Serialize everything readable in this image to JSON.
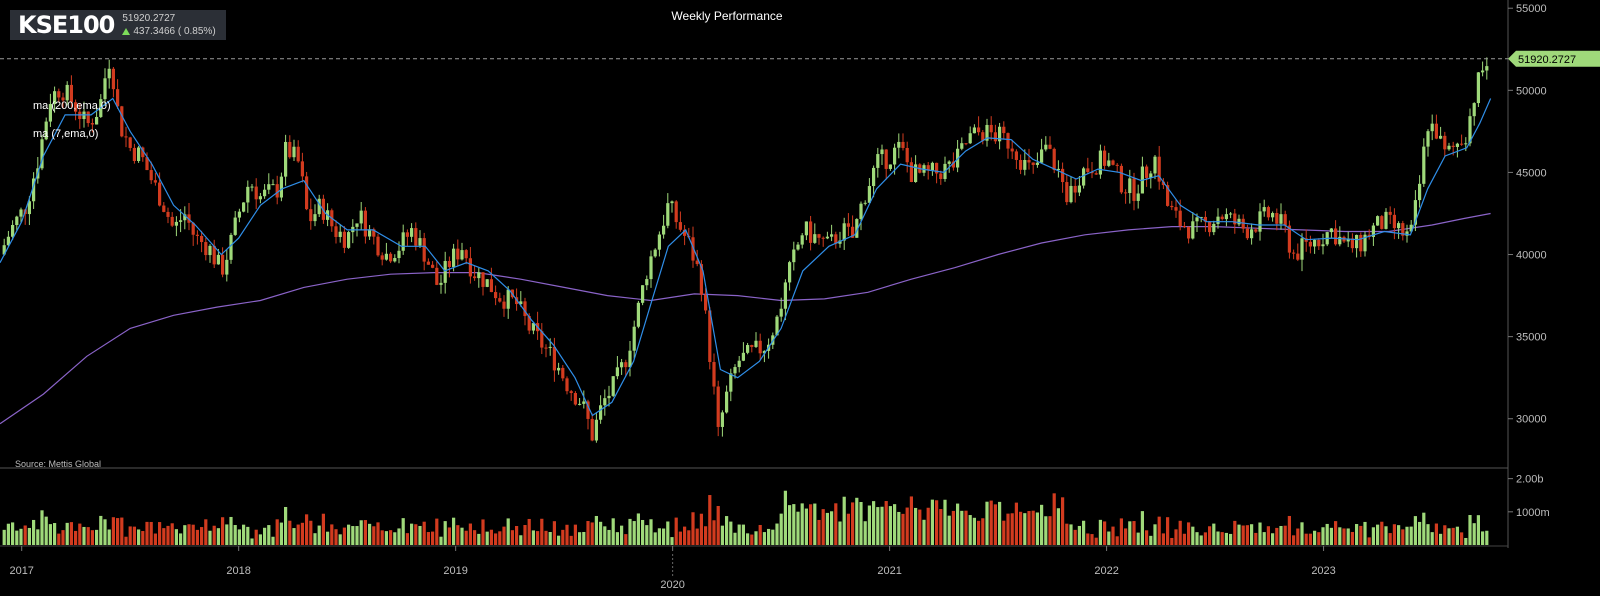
{
  "header": {
    "symbol": "KSE100",
    "last_value": "51920.2727",
    "change": "437.3466 ( 0.85%)",
    "change_direction": "up"
  },
  "title": "Weekly Performance",
  "ma_labels": [
    "ma (200,ema,0)",
    "ma (7,ema,0)"
  ],
  "source": "Source: Mettis Global",
  "last_price_label": "51920.2727",
  "colors": {
    "background": "#000000",
    "up": "#9fd97a",
    "down": "#d23b1f",
    "ema7": "#2f8ee8",
    "ema200": "#8a63c8",
    "price_tag": "#9fd97a"
  },
  "chart_data": {
    "type": "candlestick",
    "title": "Weekly Performance",
    "price_axis": {
      "ticks": [
        30000,
        35000,
        40000,
        45000,
        50000,
        55000
      ],
      "range": [
        27000,
        55500
      ]
    },
    "volume_axis": {
      "ticks": [
        "1000m",
        "2.00b"
      ],
      "tick_values": [
        1000,
        2000
      ],
      "range": [
        0,
        2200
      ],
      "unit": "millions"
    },
    "x_axis": {
      "labels": [
        "2017",
        "2018",
        "2019",
        "2020",
        "2021",
        "2022",
        "2023"
      ],
      "range": [
        2016.9,
        2023.85
      ]
    },
    "last_price": 51920.2727,
    "price_path": [
      [
        2016.9,
        40000
      ],
      [
        2016.95,
        41500
      ],
      [
        2017.02,
        43000
      ],
      [
        2017.08,
        46000
      ],
      [
        2017.13,
        49500
      ],
      [
        2017.18,
        50200
      ],
      [
        2017.25,
        49000
      ],
      [
        2017.3,
        47800
      ],
      [
        2017.36,
        49000
      ],
      [
        2017.4,
        52000
      ],
      [
        2017.42,
        51000
      ],
      [
        2017.45,
        48000
      ],
      [
        2017.5,
        46500
      ],
      [
        2017.55,
        46000
      ],
      [
        2017.6,
        44500
      ],
      [
        2017.65,
        43200
      ],
      [
        2017.7,
        41500
      ],
      [
        2017.75,
        42500
      ],
      [
        2017.8,
        41000
      ],
      [
        2017.86,
        40500
      ],
      [
        2017.92,
        39000
      ],
      [
        2017.96,
        40500
      ],
      [
        2018.0,
        42500
      ],
      [
        2018.05,
        44500
      ],
      [
        2018.1,
        43500
      ],
      [
        2018.18,
        44000
      ],
      [
        2018.22,
        46500
      ],
      [
        2018.28,
        45500
      ],
      [
        2018.32,
        42000
      ],
      [
        2018.38,
        43000
      ],
      [
        2018.44,
        41500
      ],
      [
        2018.5,
        41000
      ],
      [
        2018.55,
        42500
      ],
      [
        2018.62,
        41000
      ],
      [
        2018.68,
        40000
      ],
      [
        2018.74,
        40500
      ],
      [
        2018.8,
        41500
      ],
      [
        2018.86,
        40000
      ],
      [
        2018.92,
        38000
      ],
      [
        2018.97,
        39500
      ],
      [
        2019.03,
        40500
      ],
      [
        2019.08,
        39000
      ],
      [
        2019.13,
        38500
      ],
      [
        2019.2,
        37500
      ],
      [
        2019.28,
        37000
      ],
      [
        2019.34,
        35500
      ],
      [
        2019.4,
        34500
      ],
      [
        2019.46,
        33500
      ],
      [
        2019.52,
        32000
      ],
      [
        2019.58,
        31000
      ],
      [
        2019.63,
        29000
      ],
      [
        2019.68,
        31000
      ],
      [
        2019.73,
        32000
      ],
      [
        2019.78,
        33500
      ],
      [
        2019.83,
        36000
      ],
      [
        2019.88,
        39000
      ],
      [
        2019.93,
        41000
      ],
      [
        2019.98,
        43000
      ],
      [
        2020.02,
        42000
      ],
      [
        2020.08,
        40500
      ],
      [
        2020.13,
        38500
      ],
      [
        2020.18,
        33000
      ],
      [
        2020.21,
        29000
      ],
      [
        2020.24,
        31000
      ],
      [
        2020.3,
        33500
      ],
      [
        2020.37,
        34000
      ],
      [
        2020.43,
        34500
      ],
      [
        2020.48,
        36000
      ],
      [
        2020.54,
        39000
      ],
      [
        2020.6,
        41500
      ],
      [
        2020.66,
        41000
      ],
      [
        2020.72,
        40500
      ],
      [
        2020.78,
        41500
      ],
      [
        2020.83,
        41000
      ],
      [
        2020.88,
        43500
      ],
      [
        2020.94,
        45500
      ],
      [
        2021.0,
        46000
      ],
      [
        2021.05,
        46500
      ],
      [
        2021.1,
        45000
      ],
      [
        2021.15,
        44800
      ],
      [
        2021.22,
        45000
      ],
      [
        2021.3,
        45500
      ],
      [
        2021.36,
        47000
      ],
      [
        2021.42,
        47500
      ],
      [
        2021.5,
        47200
      ],
      [
        2021.56,
        46800
      ],
      [
        2021.62,
        45500
      ],
      [
        2021.66,
        45000
      ],
      [
        2021.72,
        46500
      ],
      [
        2021.78,
        45000
      ],
      [
        2021.82,
        43500
      ],
      [
        2021.88,
        45000
      ],
      [
        2021.94,
        45500
      ],
      [
        2022.0,
        45800
      ],
      [
        2022.06,
        44500
      ],
      [
        2022.12,
        43800
      ],
      [
        2022.18,
        45000
      ],
      [
        2022.22,
        46000
      ],
      [
        2022.28,
        43000
      ],
      [
        2022.33,
        42000
      ],
      [
        2022.4,
        41500
      ],
      [
        2022.46,
        41800
      ],
      [
        2022.52,
        42500
      ],
      [
        2022.58,
        42000
      ],
      [
        2022.64,
        41500
      ],
      [
        2022.7,
        42000
      ],
      [
        2022.76,
        42500
      ],
      [
        2022.82,
        41500
      ],
      [
        2022.86,
        40000
      ],
      [
        2022.92,
        40500
      ],
      [
        2022.98,
        41000
      ],
      [
        2023.04,
        41500
      ],
      [
        2023.1,
        40500
      ],
      [
        2023.16,
        40500
      ],
      [
        2023.22,
        41500
      ],
      [
        2023.28,
        42000
      ],
      [
        2023.34,
        41500
      ],
      [
        2023.4,
        41000
      ],
      [
        2023.44,
        44000
      ],
      [
        2023.48,
        48000
      ],
      [
        2023.52,
        47500
      ],
      [
        2023.56,
        46000
      ],
      [
        2023.6,
        46500
      ],
      [
        2023.66,
        47500
      ],
      [
        2023.7,
        50000
      ],
      [
        2023.74,
        51500
      ],
      [
        2023.77,
        51920
      ]
    ],
    "ema7_path": [
      [
        2016.9,
        39500
      ],
      [
        2017.0,
        42000
      ],
      [
        2017.1,
        46000
      ],
      [
        2017.2,
        48500
      ],
      [
        2017.32,
        48500
      ],
      [
        2017.42,
        49500
      ],
      [
        2017.5,
        47500
      ],
      [
        2017.6,
        45500
      ],
      [
        2017.7,
        43000
      ],
      [
        2017.8,
        41800
      ],
      [
        2017.92,
        40000
      ],
      [
        2018.0,
        41000
      ],
      [
        2018.1,
        43000
      ],
      [
        2018.2,
        44000
      ],
      [
        2018.3,
        44500
      ],
      [
        2018.4,
        42500
      ],
      [
        2018.5,
        41500
      ],
      [
        2018.62,
        41500
      ],
      [
        2018.75,
        40500
      ],
      [
        2018.86,
        40500
      ],
      [
        2018.95,
        39000
      ],
      [
        2019.05,
        39500
      ],
      [
        2019.15,
        39000
      ],
      [
        2019.25,
        37800
      ],
      [
        2019.35,
        36000
      ],
      [
        2019.45,
        34500
      ],
      [
        2019.55,
        32500
      ],
      [
        2019.63,
        30200
      ],
      [
        2019.72,
        31000
      ],
      [
        2019.82,
        33500
      ],
      [
        2019.9,
        37000
      ],
      [
        2019.98,
        40500
      ],
      [
        2020.06,
        41500
      ],
      [
        2020.14,
        39000
      ],
      [
        2020.22,
        33000
      ],
      [
        2020.3,
        32500
      ],
      [
        2020.4,
        33500
      ],
      [
        2020.5,
        35500
      ],
      [
        2020.6,
        39000
      ],
      [
        2020.72,
        40500
      ],
      [
        2020.84,
        41200
      ],
      [
        2020.94,
        44000
      ],
      [
        2021.05,
        45500
      ],
      [
        2021.15,
        45200
      ],
      [
        2021.25,
        45000
      ],
      [
        2021.35,
        46300
      ],
      [
        2021.45,
        47100
      ],
      [
        2021.56,
        47000
      ],
      [
        2021.66,
        45800
      ],
      [
        2021.76,
        45200
      ],
      [
        2021.86,
        44600
      ],
      [
        2021.96,
        45200
      ],
      [
        2022.06,
        45000
      ],
      [
        2022.16,
        44500
      ],
      [
        2022.24,
        44800
      ],
      [
        2022.34,
        43000
      ],
      [
        2022.46,
        42000
      ],
      [
        2022.58,
        42000
      ],
      [
        2022.7,
        41800
      ],
      [
        2022.82,
        41800
      ],
      [
        2022.92,
        40900
      ],
      [
        2023.04,
        41000
      ],
      [
        2023.16,
        40900
      ],
      [
        2023.28,
        41400
      ],
      [
        2023.4,
        41200
      ],
      [
        2023.48,
        44000
      ],
      [
        2023.56,
        46000
      ],
      [
        2023.66,
        46500
      ],
      [
        2023.72,
        48000
      ],
      [
        2023.77,
        49500
      ]
    ],
    "ema200_path": [
      [
        2016.9,
        29700
      ],
      [
        2017.1,
        31500
      ],
      [
        2017.3,
        33800
      ],
      [
        2017.5,
        35500
      ],
      [
        2017.7,
        36300
      ],
      [
        2017.9,
        36800
      ],
      [
        2018.1,
        37200
      ],
      [
        2018.3,
        38000
      ],
      [
        2018.5,
        38500
      ],
      [
        2018.7,
        38800
      ],
      [
        2018.9,
        38900
      ],
      [
        2019.1,
        38900
      ],
      [
        2019.3,
        38500
      ],
      [
        2019.5,
        38000
      ],
      [
        2019.7,
        37500
      ],
      [
        2019.9,
        37200
      ],
      [
        2020.1,
        37600
      ],
      [
        2020.3,
        37500
      ],
      [
        2020.5,
        37200
      ],
      [
        2020.7,
        37300
      ],
      [
        2020.9,
        37700
      ],
      [
        2021.1,
        38500
      ],
      [
        2021.3,
        39200
      ],
      [
        2021.5,
        40000
      ],
      [
        2021.7,
        40700
      ],
      [
        2021.9,
        41200
      ],
      [
        2022.1,
        41500
      ],
      [
        2022.3,
        41700
      ],
      [
        2022.5,
        41700
      ],
      [
        2022.7,
        41600
      ],
      [
        2022.9,
        41500
      ],
      [
        2023.1,
        41400
      ],
      [
        2023.3,
        41400
      ],
      [
        2023.5,
        41800
      ],
      [
        2023.65,
        42200
      ],
      [
        2023.77,
        42500
      ]
    ]
  }
}
